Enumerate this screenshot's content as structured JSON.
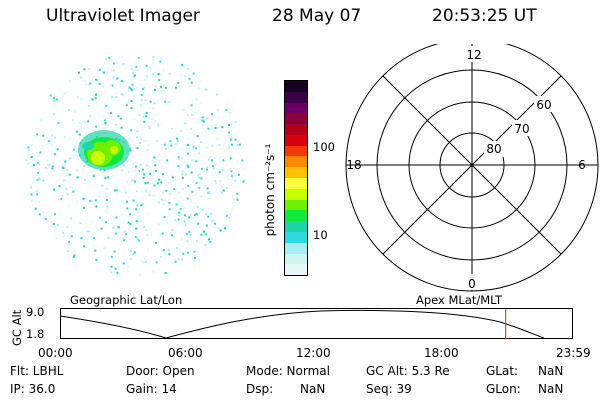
{
  "header": {
    "instrument": "Ultraviolet Imager",
    "date": "28 May 07",
    "time": "20:53:25 UT"
  },
  "colorbar": {
    "label": "photon cm⁻²s⁻¹",
    "ticks": [
      "100",
      "10"
    ],
    "colors": [
      "#1a0022",
      "#3a0046",
      "#6a0064",
      "#8a0038",
      "#b2001a",
      "#d40010",
      "#f03c00",
      "#ff8800",
      "#ffc000",
      "#ffff40",
      "#c8ff00",
      "#6ef000",
      "#12e83a",
      "#1ed4a8",
      "#30d8e0",
      "#a8eef0",
      "#d0f4f2",
      "#e8f8f6"
    ]
  },
  "polar": {
    "mlt_labels": {
      "top": "12",
      "bottom": "0",
      "left": "18",
      "right": "6"
    },
    "lat_labels": [
      "60",
      "70",
      "80"
    ]
  },
  "timeline": {
    "ylabel": "GC Alt",
    "yticks": [
      "9.0",
      "1.8"
    ],
    "left_label": "Geographic Lat/Lon",
    "right_label": "Apex MLat/MLT",
    "xticks": [
      "00:00",
      "06:00",
      "12:00",
      "18:00",
      "23:59"
    ],
    "current_time_hours": 20.89
  },
  "footer": {
    "filter": "Flt: LBHL",
    "door": "Door: Open",
    "mode": "Mode: Normal",
    "gc_alt": "GC Alt: 5.3 Re",
    "glat_label": "GLat:",
    "glat_value": "NaN",
    "ip": "IP: 36.0",
    "gain": "Gain: 14",
    "dsp_label": "Dsp:",
    "dsp_value": "NaN",
    "seq": "Seq: 39",
    "glon_label": "GLon:",
    "glon_value": "NaN"
  }
}
